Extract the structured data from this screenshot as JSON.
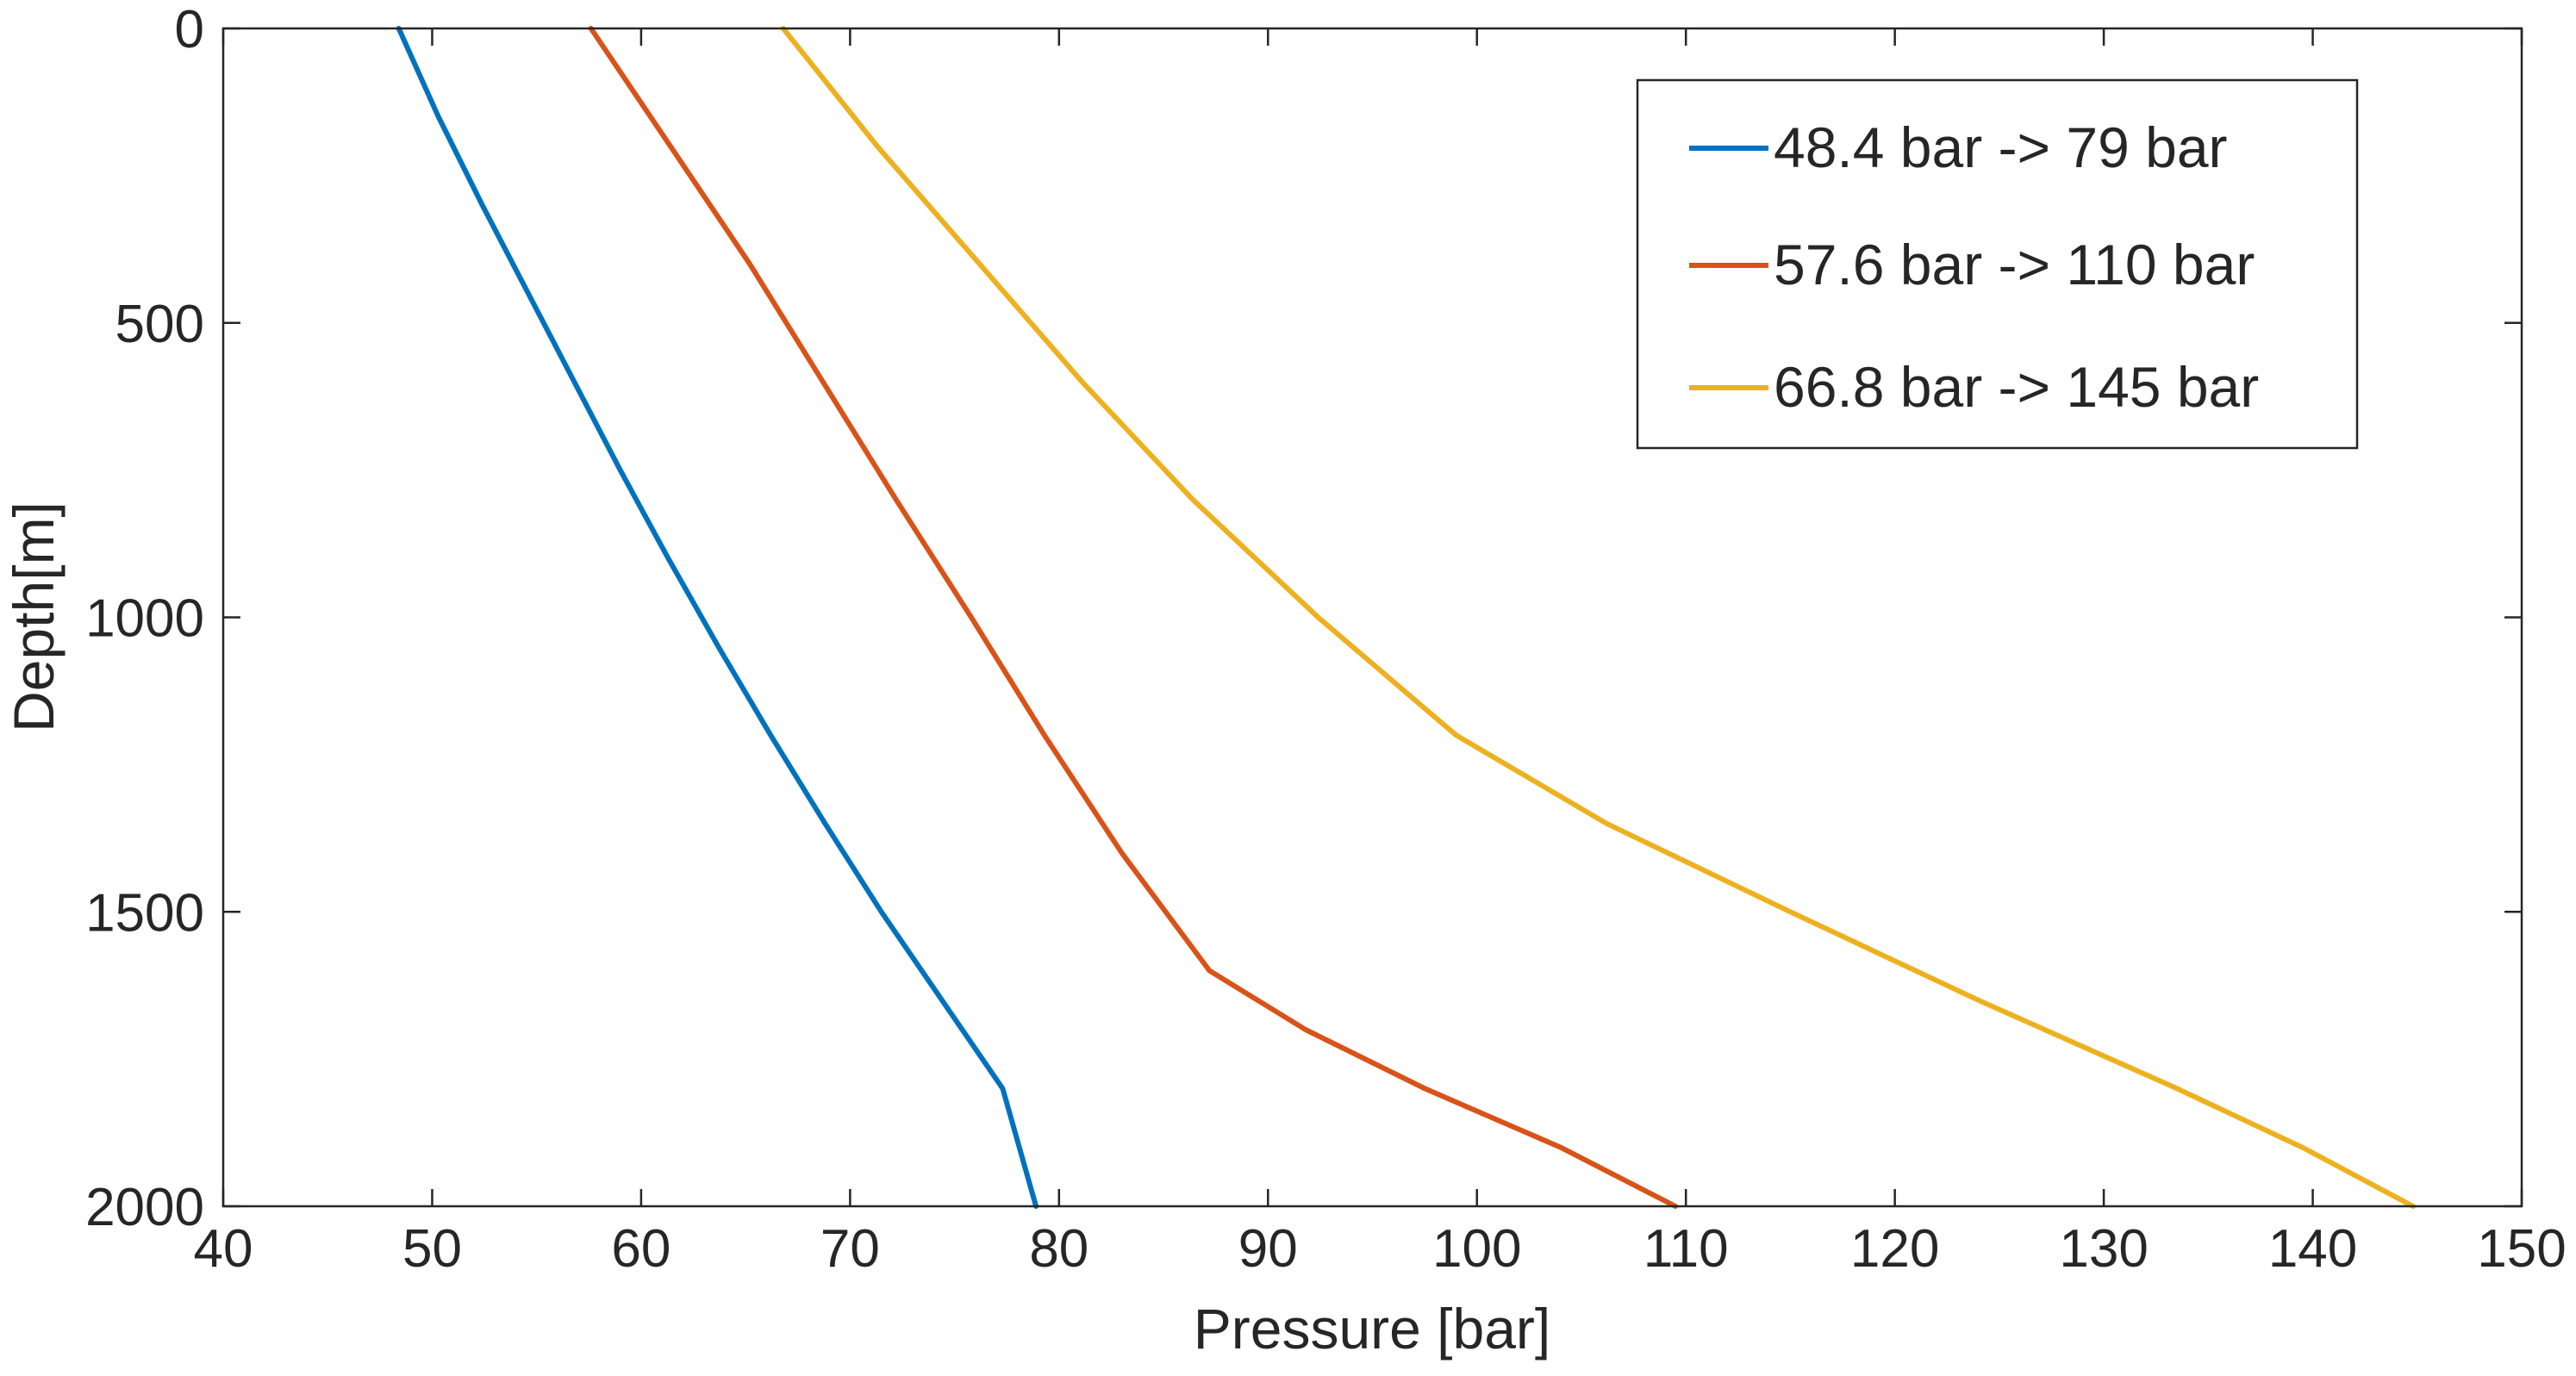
{
  "chart_data": {
    "type": "line",
    "title": "",
    "xlabel": "Pressure [bar]",
    "ylabel": "Depth[m]",
    "xlim": [
      40,
      150
    ],
    "ylim": [
      2000,
      0
    ],
    "y_reversed": true,
    "x_ticks": [
      40,
      50,
      60,
      70,
      80,
      90,
      100,
      110,
      120,
      130,
      140,
      150
    ],
    "y_ticks": [
      0,
      500,
      1000,
      1500,
      2000
    ],
    "grid": false,
    "legend_position": "top-right",
    "series": [
      {
        "name": "48.4 bar -> 79 bar",
        "color": "#0072BD",
        "x": [
          48.4,
          50.3,
          52.4,
          54.6,
          56.8,
          59.0,
          61.3,
          63.7,
          66.2,
          68.8,
          71.5,
          74.4,
          77.3,
          78.9
        ],
        "y": [
          0,
          150,
          300,
          450,
          600,
          750,
          900,
          1050,
          1200,
          1350,
          1500,
          1650,
          1800,
          2000
        ]
      },
      {
        "name": "57.6 bar -> 110 bar",
        "color": "#D95319",
        "x": [
          57.6,
          61.4,
          65.2,
          68.7,
          72.2,
          75.8,
          79.3,
          83.0,
          87.2,
          91.8,
          97.5,
          104.0,
          109.5
        ],
        "y": [
          0,
          200,
          400,
          600,
          800,
          1000,
          1200,
          1400,
          1600,
          1700,
          1800,
          1900,
          2000
        ]
      },
      {
        "name": "66.8 bar -> 145 bar",
        "color": "#EDB120",
        "x": [
          66.8,
          71.3,
          76.2,
          81.1,
          86.4,
          92.4,
          99.0,
          106.2,
          115.0,
          124.0,
          133.5,
          139.5,
          144.8
        ],
        "y": [
          0,
          200,
          400,
          600,
          800,
          1000,
          1200,
          1350,
          1500,
          1650,
          1800,
          1900,
          2000
        ]
      }
    ]
  }
}
